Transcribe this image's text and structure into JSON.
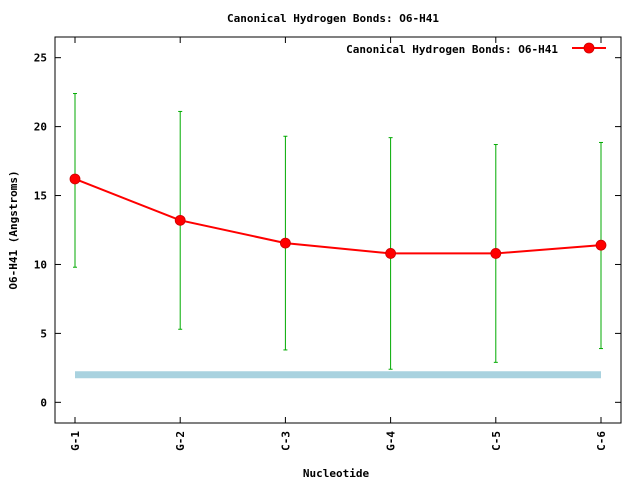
{
  "chart_data": {
    "type": "line",
    "title": "Canonical Hydrogen Bonds: O6-H41",
    "xlabel": "Nucleotide",
    "ylabel": "O6-H41 (Angstroms)",
    "categories": [
      "G-1",
      "G-2",
      "C-3",
      "G-4",
      "C-5",
      "C-6"
    ],
    "ylim": [
      -1.5,
      26.5
    ],
    "yticks": [
      0,
      5,
      10,
      15,
      20,
      25
    ],
    "grid": false,
    "legend_position": "top-right",
    "series": [
      {
        "name": "Canonical Hydrogen Bonds: O6-H41",
        "values": [
          16.2,
          13.2,
          11.55,
          10.8,
          10.8,
          11.4
        ],
        "error_low": [
          9.8,
          5.3,
          3.8,
          2.4,
          2.9,
          3.9
        ],
        "error_high": [
          22.4,
          21.1,
          19.3,
          19.2,
          18.7,
          18.85
        ],
        "color": "#ff0000",
        "marker_color": "#ff0000",
        "error_bar_color": "#00aa00"
      }
    ],
    "reference_band": {
      "value": 2.0,
      "color": "#a9d2df"
    }
  }
}
